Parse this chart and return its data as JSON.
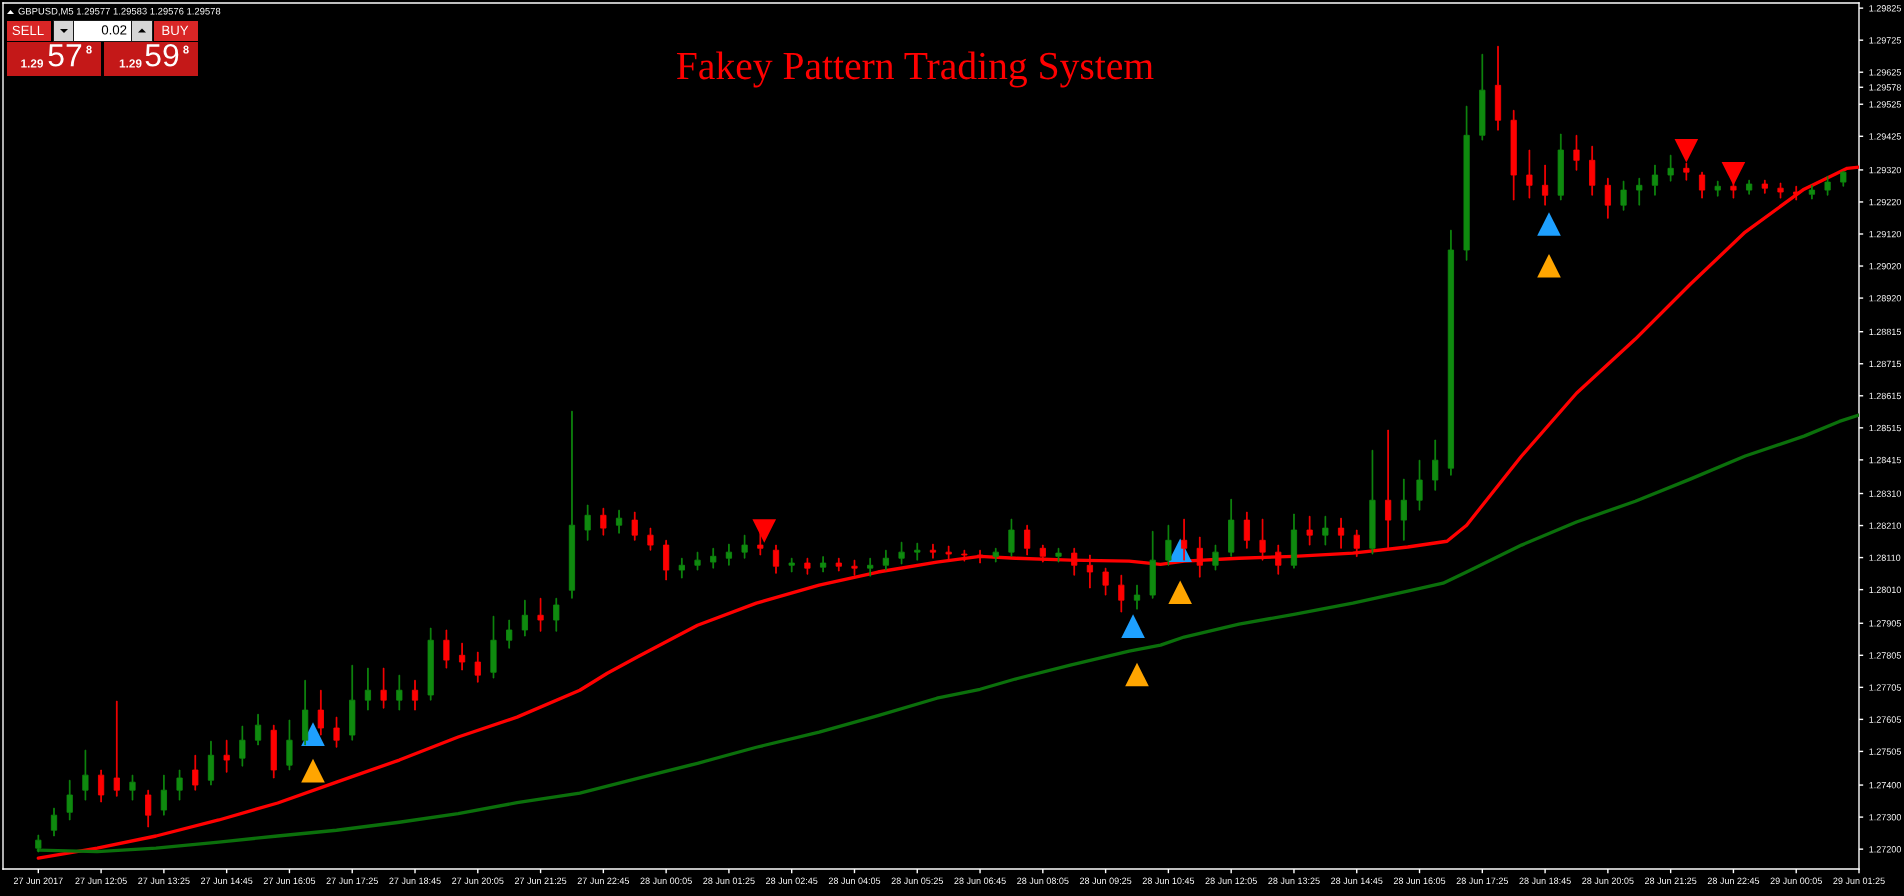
{
  "chart_data": {
    "type": "candlestick",
    "title": "Fakey Pattern Trading System",
    "x": [
      "2017-06-27T10:45",
      "2017-06-27T11:05",
      "2017-06-27T11:25",
      "2017-06-27T11:45",
      "2017-06-27T12:05",
      "2017-06-27T12:25",
      "2017-06-27T12:45",
      "2017-06-27T13:05",
      "2017-06-27T13:25",
      "2017-06-27T13:45",
      "2017-06-27T14:05",
      "2017-06-27T14:25",
      "2017-06-27T14:45",
      "2017-06-27T15:05",
      "2017-06-27T15:25",
      "2017-06-27T15:45",
      "2017-06-27T16:05",
      "2017-06-27T16:25",
      "2017-06-27T16:45",
      "2017-06-27T17:05",
      "2017-06-27T17:25",
      "2017-06-27T17:45",
      "2017-06-27T18:05",
      "2017-06-27T18:25",
      "2017-06-27T18:45",
      "2017-06-27T19:05",
      "2017-06-27T19:25",
      "2017-06-27T19:45",
      "2017-06-27T20:05",
      "2017-06-27T20:25",
      "2017-06-27T20:45",
      "2017-06-27T21:05",
      "2017-06-27T21:25",
      "2017-06-27T21:45",
      "2017-06-27T22:05",
      "2017-06-27T22:25",
      "2017-06-27T22:45",
      "2017-06-27T23:05",
      "2017-06-27T23:25",
      "2017-06-27T23:45",
      "2017-06-28T00:05",
      "2017-06-28T00:25",
      "2017-06-28T00:45",
      "2017-06-28T01:05",
      "2017-06-28T01:25",
      "2017-06-28T01:45",
      "2017-06-28T02:05",
      "2017-06-28T02:25",
      "2017-06-28T02:45",
      "2017-06-28T03:05",
      "2017-06-28T03:25",
      "2017-06-28T03:45",
      "2017-06-28T04:05",
      "2017-06-28T04:25",
      "2017-06-28T04:45",
      "2017-06-28T05:05",
      "2017-06-28T05:25",
      "2017-06-28T05:45",
      "2017-06-28T06:05",
      "2017-06-28T06:25",
      "2017-06-28T06:45",
      "2017-06-28T07:05",
      "2017-06-28T07:25",
      "2017-06-28T07:45",
      "2017-06-28T08:05",
      "2017-06-28T08:25",
      "2017-06-28T08:45",
      "2017-06-28T09:05",
      "2017-06-28T09:25",
      "2017-06-28T09:45",
      "2017-06-28T10:05",
      "2017-06-28T10:25",
      "2017-06-28T10:45",
      "2017-06-28T11:05",
      "2017-06-28T11:25",
      "2017-06-28T11:45",
      "2017-06-28T12:05",
      "2017-06-28T12:25",
      "2017-06-28T12:45",
      "2017-06-28T13:05",
      "2017-06-28T13:25",
      "2017-06-28T13:45",
      "2017-06-28T14:05",
      "2017-06-28T14:25",
      "2017-06-28T14:45",
      "2017-06-28T15:05",
      "2017-06-28T15:25",
      "2017-06-28T15:45",
      "2017-06-28T16:05",
      "2017-06-28T16:25",
      "2017-06-28T16:45",
      "2017-06-28T17:05",
      "2017-06-28T17:25",
      "2017-06-28T17:45",
      "2017-06-28T18:05",
      "2017-06-28T18:25",
      "2017-06-28T18:45",
      "2017-06-28T19:05",
      "2017-06-28T19:25",
      "2017-06-28T19:45",
      "2017-06-28T20:05",
      "2017-06-28T20:25",
      "2017-06-28T20:45",
      "2017-06-28T21:05",
      "2017-06-28T21:25",
      "2017-06-28T21:45",
      "2017-06-28T22:05",
      "2017-06-28T22:25",
      "2017-06-28T22:45",
      "2017-06-28T23:05",
      "2017-06-28T23:25",
      "2017-06-28T23:45",
      "2017-06-29T00:05",
      "2017-06-29T00:25",
      "2017-06-29T00:45",
      "2017-06-29T01:05"
    ],
    "ohlc": [
      [
        1.27203,
        1.27244,
        1.27191,
        1.27228
      ],
      [
        1.27259,
        1.27328,
        1.27241,
        1.27306
      ],
      [
        1.27315,
        1.27415,
        1.27291,
        1.27369
      ],
      [
        1.27384,
        1.27509,
        1.27353,
        1.27431
      ],
      [
        1.27431,
        1.27447,
        1.27347,
        1.27369
      ],
      [
        1.27422,
        1.27662,
        1.27365,
        1.27384
      ],
      [
        1.27384,
        1.27431,
        1.27353,
        1.27409
      ],
      [
        1.27369,
        1.27384,
        1.27269,
        1.27306
      ],
      [
        1.27322,
        1.27431,
        1.27306,
        1.27384
      ],
      [
        1.27384,
        1.27447,
        1.27353,
        1.27422
      ],
      [
        1.27447,
        1.27493,
        1.27384,
        1.274
      ],
      [
        1.27415,
        1.27537,
        1.274,
        1.27493
      ],
      [
        1.27493,
        1.2754,
        1.2744,
        1.27478
      ],
      [
        1.27484,
        1.27584,
        1.27459,
        1.2754
      ],
      [
        1.2754,
        1.27621,
        1.27525,
        1.27587
      ],
      [
        1.27571,
        1.27587,
        1.27422,
        1.27447
      ],
      [
        1.27462,
        1.27603,
        1.27447,
        1.2754
      ],
      [
        1.2754,
        1.27727,
        1.27525,
        1.27634
      ],
      [
        1.27634,
        1.27696,
        1.27556,
        1.27578
      ],
      [
        1.27578,
        1.27612,
        1.27518,
        1.2754
      ],
      [
        1.27556,
        1.27774,
        1.2754,
        1.27665
      ],
      [
        1.27665,
        1.27765,
        1.27634,
        1.27696
      ],
      [
        1.27696,
        1.27765,
        1.2764,
        1.27665
      ],
      [
        1.27665,
        1.27743,
        1.27634,
        1.27696
      ],
      [
        1.27696,
        1.27727,
        1.27634,
        1.27665
      ],
      [
        1.27681,
        1.2789,
        1.27665,
        1.27852
      ],
      [
        1.27852,
        1.27884,
        1.27765,
        1.2779
      ],
      [
        1.27805,
        1.27843,
        1.27759,
        1.27784
      ],
      [
        1.27784,
        1.27815,
        1.27721,
        1.27743
      ],
      [
        1.27752,
        1.27927,
        1.27734,
        1.27852
      ],
      [
        1.27852,
        1.27915,
        1.27827,
        1.27884
      ],
      [
        1.27884,
        1.27977,
        1.27865,
        1.2793
      ],
      [
        1.2793,
        1.27983,
        1.2788,
        1.27915
      ],
      [
        1.27915,
        1.27983,
        1.2788,
        1.27962
      ],
      [
        1.28008,
        1.28567,
        1.27983,
        1.28211
      ],
      [
        1.28196,
        1.28274,
        1.28164,
        1.28242
      ],
      [
        1.28242,
        1.28264,
        1.2818,
        1.28202
      ],
      [
        1.28211,
        1.28258,
        1.28186,
        1.28233
      ],
      [
        1.28227,
        1.28252,
        1.28164,
        1.2818
      ],
      [
        1.2818,
        1.28202,
        1.28133,
        1.28149
      ],
      [
        1.28149,
        1.28164,
        1.2804,
        1.28071
      ],
      [
        1.28071,
        1.28108,
        1.28046,
        1.28086
      ],
      [
        1.28086,
        1.28127,
        1.28071,
        1.28102
      ],
      [
        1.28096,
        1.28139,
        1.28077,
        1.28114
      ],
      [
        1.28108,
        1.28152,
        1.28086,
        1.28127
      ],
      [
        1.28127,
        1.2818,
        1.28108,
        1.28149
      ],
      [
        1.28149,
        1.28196,
        1.28118,
        1.28139
      ],
      [
        1.28133,
        1.28149,
        1.28061,
        1.28083
      ],
      [
        1.28086,
        1.28108,
        1.28065,
        1.28093
      ],
      [
        1.28093,
        1.28108,
        1.28058,
        1.28077
      ],
      [
        1.2808,
        1.28113,
        1.28065,
        1.28093
      ],
      [
        1.28093,
        1.28108,
        1.28068,
        1.28083
      ],
      [
        1.28083,
        1.28102,
        1.28055,
        1.28077
      ],
      [
        1.28077,
        1.28108,
        1.28052,
        1.28086
      ],
      [
        1.28086,
        1.28133,
        1.28071,
        1.28108
      ],
      [
        1.28108,
        1.28158,
        1.2809,
        1.28127
      ],
      [
        1.28127,
        1.28155,
        1.28102,
        1.28133
      ],
      [
        1.28133,
        1.28152,
        1.28108,
        1.28127
      ],
      [
        1.28127,
        1.28146,
        1.28102,
        1.28121
      ],
      [
        1.28121,
        1.28133,
        1.28099,
        1.28118
      ],
      [
        1.28118,
        1.28133,
        1.28093,
        1.28113
      ],
      [
        1.28113,
        1.28139,
        1.28096,
        1.28127
      ],
      [
        1.28127,
        1.2823,
        1.28114,
        1.28196
      ],
      [
        1.28196,
        1.28211,
        1.28118,
        1.28139
      ],
      [
        1.28139,
        1.28149,
        1.28096,
        1.28114
      ],
      [
        1.28114,
        1.28139,
        1.28096,
        1.28124
      ],
      [
        1.28124,
        1.28139,
        1.28055,
        1.28086
      ],
      [
        1.28086,
        1.28118,
        1.28015,
        1.28065
      ],
      [
        1.28065,
        1.28077,
        1.27993,
        1.28024
      ],
      [
        1.28024,
        1.28055,
        1.2794,
        1.27977
      ],
      [
        1.27977,
        1.28024,
        1.27949,
        1.27993
      ],
      [
        1.27993,
        1.28192,
        1.27983,
        1.28102
      ],
      [
        1.28102,
        1.28211,
        1.28086,
        1.28164
      ],
      [
        1.28164,
        1.2823,
        1.28102,
        1.28139
      ],
      [
        1.28139,
        1.28174,
        1.28049,
        1.28086
      ],
      [
        1.28086,
        1.28149,
        1.28071,
        1.28127
      ],
      [
        1.28127,
        1.28292,
        1.28114,
        1.28227
      ],
      [
        1.28227,
        1.28252,
        1.28139,
        1.28164
      ],
      [
        1.28164,
        1.2823,
        1.28102,
        1.28127
      ],
      [
        1.28127,
        1.28149,
        1.28058,
        1.28086
      ],
      [
        1.28086,
        1.28246,
        1.28077,
        1.28196
      ],
      [
        1.28196,
        1.28239,
        1.28149,
        1.2818
      ],
      [
        1.2818,
        1.28239,
        1.28149,
        1.28202
      ],
      [
        1.28202,
        1.28233,
        1.28139,
        1.2818
      ],
      [
        1.2818,
        1.28196,
        1.28113,
        1.28139
      ],
      [
        1.28139,
        1.28445,
        1.28121,
        1.28289
      ],
      [
        1.28289,
        1.28508,
        1.28139,
        1.28227
      ],
      [
        1.28227,
        1.28355,
        1.28164,
        1.28289
      ],
      [
        1.28289,
        1.28414,
        1.28258,
        1.28352
      ],
      [
        1.28352,
        1.28477,
        1.2832,
        1.28414
      ],
      [
        1.28389,
        1.29132,
        1.28367,
        1.2907
      ],
      [
        1.2907,
        1.29519,
        1.29038,
        1.29428
      ],
      [
        1.29428,
        1.29681,
        1.29413,
        1.29569
      ],
      [
        1.29584,
        1.29706,
        1.29444,
        1.29475
      ],
      [
        1.29475,
        1.29506,
        1.29226,
        1.29304
      ],
      [
        1.29304,
        1.29382,
        1.29232,
        1.29272
      ],
      [
        1.29272,
        1.29335,
        1.2921,
        1.29241
      ],
      [
        1.29241,
        1.29432,
        1.29226,
        1.29382
      ],
      [
        1.29382,
        1.29428,
        1.29319,
        1.2935
      ],
      [
        1.2935,
        1.29394,
        1.29241,
        1.29272
      ],
      [
        1.29272,
        1.29294,
        1.29169,
        1.2921
      ],
      [
        1.2921,
        1.29285,
        1.29194,
        1.29257
      ],
      [
        1.29257,
        1.29294,
        1.2921,
        1.29272
      ],
      [
        1.29272,
        1.29335,
        1.29241,
        1.29304
      ],
      [
        1.29304,
        1.29366,
        1.29285,
        1.29325
      ],
      [
        1.29325,
        1.29341,
        1.29288,
        1.29313
      ],
      [
        1.29304,
        1.29313,
        1.29232,
        1.29257
      ],
      [
        1.29257,
        1.29285,
        1.29238,
        1.29269
      ],
      [
        1.29269,
        1.29282,
        1.29232,
        1.29257
      ],
      [
        1.29257,
        1.29288,
        1.29244,
        1.29276
      ],
      [
        1.29276,
        1.29288,
        1.29247,
        1.29263
      ],
      [
        1.29263,
        1.29279,
        1.29232,
        1.29251
      ],
      [
        1.29251,
        1.29269,
        1.29226,
        1.29244
      ],
      [
        1.29244,
        1.29272,
        1.29229,
        1.29257
      ],
      [
        1.29257,
        1.293,
        1.29241,
        1.29282
      ],
      [
        1.29282,
        1.29316,
        1.29269,
        1.29313
      ]
    ],
    "colors": [
      "#0f8a0f",
      "#0f8a0f",
      "#0f8a0f",
      "#0f8a0f",
      "#ff0000",
      "#ff0000",
      "#0f8a0f",
      "#ff0000",
      "#0f8a0f",
      "#0f8a0f",
      "#ff0000",
      "#0f8a0f",
      "#ff0000",
      "#0f8a0f",
      "#0f8a0f",
      "#ff0000",
      "#0f8a0f",
      "#0f8a0f",
      "#ff0000",
      "#ff0000",
      "#0f8a0f",
      "#0f8a0f",
      "#ff0000",
      "#0f8a0f",
      "#ff0000",
      "#0f8a0f",
      "#ff0000",
      "#ff0000",
      "#ff0000",
      "#0f8a0f",
      "#0f8a0f",
      "#0f8a0f",
      "#ff0000",
      "#0f8a0f",
      "#0f8a0f",
      "#0f8a0f",
      "#ff0000",
      "#0f8a0f",
      "#ff0000",
      "#ff0000",
      "#ff0000",
      "#0f8a0f",
      "#0f8a0f",
      "#0f8a0f",
      "#0f8a0f",
      "#0f8a0f",
      "#ff0000",
      "#ff0000",
      "#0f8a0f",
      "#ff0000",
      "#0f8a0f",
      "#ff0000",
      "#ff0000",
      "#0f8a0f",
      "#0f8a0f",
      "#0f8a0f",
      "#0f8a0f",
      "#ff0000",
      "#ff0000",
      "#ff0000",
      "#ff0000",
      "#0f8a0f",
      "#0f8a0f",
      "#ff0000",
      "#ff0000",
      "#0f8a0f",
      "#ff0000",
      "#ff0000",
      "#ff0000",
      "#ff0000",
      "#0f8a0f",
      "#0f8a0f",
      "#0f8a0f",
      "#ff0000",
      "#ff0000",
      "#0f8a0f",
      "#0f8a0f",
      "#ff0000",
      "#ff0000",
      "#ff0000",
      "#0f8a0f",
      "#ff0000",
      "#0f8a0f",
      "#ff0000",
      "#ff0000",
      "#0f8a0f",
      "#ff0000",
      "#0f8a0f",
      "#0f8a0f",
      "#0f8a0f",
      "#0f8a0f",
      "#0f8a0f",
      "#0f8a0f",
      "#ff0000",
      "#ff0000",
      "#ff0000",
      "#ff0000",
      "#0f8a0f",
      "#ff0000",
      "#ff0000",
      "#ff0000",
      "#0f8a0f",
      "#0f8a0f",
      "#0f8a0f",
      "#0f8a0f",
      "#ff0000",
      "#ff0000",
      "#0f8a0f",
      "#ff0000",
      "#0f8a0f",
      "#ff0000",
      "#ff0000",
      "#ff0000",
      "#0f8a0f",
      "#0f8a0f",
      "#0f8a0f"
    ],
    "series": [
      {
        "type": "line",
        "color": "#ff0000",
        "x": [
          "2017-06-27T10:45",
          "2017-06-27T12:00",
          "2017-06-27T13:15",
          "2017-06-27T14:35",
          "2017-06-27T15:50",
          "2017-06-27T17:05",
          "2017-06-27T18:25",
          "2017-06-27T19:40",
          "2017-06-27T20:55",
          "2017-06-27T22:15",
          "2017-06-27T22:50",
          "2017-06-27T23:30",
          "2017-06-28T00:45",
          "2017-06-28T02:00",
          "2017-06-28T03:20",
          "2017-06-28T04:35",
          "2017-06-28T05:50",
          "2017-06-28T06:45",
          "2017-06-28T07:30",
          "2017-06-28T08:40",
          "2017-06-28T09:55",
          "2017-06-28T10:35",
          "2017-06-28T11:05",
          "2017-06-28T12:15",
          "2017-06-28T13:25",
          "2017-06-28T14:40",
          "2017-06-28T15:50",
          "2017-06-28T16:40",
          "2017-06-28T17:05",
          "2017-06-28T18:15",
          "2017-06-28T19:25",
          "2017-06-28T20:40",
          "2017-06-28T21:50",
          "2017-06-28T23:00",
          "2017-06-29T00:15",
          "2017-06-29T00:55",
          "2017-06-29T01:10",
          "2017-06-29T01:25"
        ],
        "values": [
          1.27172,
          1.27203,
          1.27241,
          1.27291,
          1.27344,
          1.27409,
          1.27478,
          1.2755,
          1.27612,
          1.27696,
          1.27749,
          1.27802,
          1.27899,
          1.27968,
          1.28024,
          1.28065,
          1.28096,
          1.28114,
          1.28108,
          1.28102,
          1.28099,
          1.28089,
          1.28099,
          1.28108,
          1.28114,
          1.28124,
          1.28143,
          1.28161,
          1.28211,
          1.28427,
          1.28623,
          1.28792,
          1.28963,
          1.29126,
          1.2926,
          1.29307,
          1.29325,
          1.29329
        ]
      },
      {
        "type": "line",
        "color": "#0b700b",
        "x": [
          "2017-06-27T10:45",
          "2017-06-27T12:00",
          "2017-06-27T13:15",
          "2017-06-27T14:35",
          "2017-06-27T15:50",
          "2017-06-27T17:05",
          "2017-06-27T18:25",
          "2017-06-27T19:40",
          "2017-06-27T20:55",
          "2017-06-27T22:15",
          "2017-06-27T23:30",
          "2017-06-28T00:45",
          "2017-06-28T02:00",
          "2017-06-28T03:20",
          "2017-06-28T04:35",
          "2017-06-28T05:50",
          "2017-06-28T06:45",
          "2017-06-28T07:30",
          "2017-06-28T08:40",
          "2017-06-28T09:55",
          "2017-06-28T10:35",
          "2017-06-28T11:05",
          "2017-06-28T12:15",
          "2017-06-28T13:25",
          "2017-06-28T14:40",
          "2017-06-28T15:50",
          "2017-06-28T16:35",
          "2017-06-28T17:05",
          "2017-06-28T18:15",
          "2017-06-28T19:25",
          "2017-06-28T20:40",
          "2017-06-28T21:50",
          "2017-06-28T23:00",
          "2017-06-29T00:15",
          "2017-06-29T01:00",
          "2017-06-29T01:25"
        ],
        "values": [
          1.27197,
          1.27192,
          1.27203,
          1.27222,
          1.27241,
          1.27259,
          1.27284,
          1.27311,
          1.27345,
          1.27375,
          1.27422,
          1.27468,
          1.27518,
          1.27565,
          1.27617,
          1.27671,
          1.27699,
          1.27731,
          1.27774,
          1.27818,
          1.27837,
          1.27862,
          1.27902,
          1.27933,
          1.27968,
          1.28005,
          1.2803,
          1.28065,
          1.28149,
          1.28221,
          1.28286,
          1.28355,
          1.28427,
          1.28489,
          1.28535,
          1.28555
        ]
      },
      {
        "type": "scatter",
        "color": "#1ea0ff",
        "marker": "triangle",
        "x": [
          "2017-06-27T16:35",
          "2017-06-28T10:00",
          "2017-06-28T11:00",
          "2017-06-28T18:50"
        ],
        "values": [
          1.27559,
          1.27896,
          1.28133,
          1.29151
        ]
      },
      {
        "type": "scatter",
        "color": "#ffa500",
        "marker": "triangle",
        "x": [
          "2017-06-27T16:35",
          "2017-06-28T10:05",
          "2017-06-28T11:00",
          "2017-06-28T18:50"
        ],
        "values": [
          1.27445,
          1.27745,
          1.28002,
          1.29021
        ]
      },
      {
        "type": "scatter",
        "color": "#ff0000",
        "x": [
          "2017-06-28T02:10",
          "2017-06-28T21:45",
          "2017-06-28T22:45"
        ],
        "values": [
          1.28193,
          1.2938,
          1.29308
        ]
      }
    ],
    "xlim": [
      "2017-06-27T10:00",
      "2017-06-29T01:25"
    ],
    "xticks": [
      {
        "value": "2017-06-27T10:45",
        "label": "27 Jun 2017"
      },
      {
        "value": "2017-06-27T12:05",
        "label": "27 Jun 12:05"
      },
      {
        "value": "2017-06-27T13:25",
        "label": "27 Jun 13:25"
      },
      {
        "value": "2017-06-27T14:45",
        "label": "27 Jun 14:45"
      },
      {
        "value": "2017-06-27T16:05",
        "label": "27 Jun 16:05"
      },
      {
        "value": "2017-06-27T17:25",
        "label": "27 Jun 17:25"
      },
      {
        "value": "2017-06-27T18:45",
        "label": "27 Jun 18:45"
      },
      {
        "value": "2017-06-27T20:05",
        "label": "27 Jun 20:05"
      },
      {
        "value": "2017-06-27T21:25",
        "label": "27 Jun 21:25"
      },
      {
        "value": "2017-06-27T22:45",
        "label": "27 Jun 22:45"
      },
      {
        "value": "2017-06-28T00:05",
        "label": "28 Jun 00:05"
      },
      {
        "value": "2017-06-28T01:25",
        "label": "28 Jun 01:25"
      },
      {
        "value": "2017-06-28T02:45",
        "label": "28 Jun 02:45"
      },
      {
        "value": "2017-06-28T04:05",
        "label": "28 Jun 04:05"
      },
      {
        "value": "2017-06-28T05:25",
        "label": "28 Jun 05:25"
      },
      {
        "value": "2017-06-28T06:45",
        "label": "28 Jun 06:45"
      },
      {
        "value": "2017-06-28T08:05",
        "label": "28 Jun 08:05"
      },
      {
        "value": "2017-06-28T09:25",
        "label": "28 Jun 09:25"
      },
      {
        "value": "2017-06-28T10:45",
        "label": "28 Jun 10:45"
      },
      {
        "value": "2017-06-28T12:05",
        "label": "28 Jun 12:05"
      },
      {
        "value": "2017-06-28T13:25",
        "label": "28 Jun 13:25"
      },
      {
        "value": "2017-06-28T14:45",
        "label": "28 Jun 14:45"
      },
      {
        "value": "2017-06-28T16:05",
        "label": "28 Jun 16:05"
      },
      {
        "value": "2017-06-28T17:25",
        "label": "28 Jun 17:25"
      },
      {
        "value": "2017-06-28T18:45",
        "label": "28 Jun 18:45"
      },
      {
        "value": "2017-06-28T20:05",
        "label": "28 Jun 20:05"
      },
      {
        "value": "2017-06-28T21:25",
        "label": "28 Jun 21:25"
      },
      {
        "value": "2017-06-28T22:45",
        "label": "28 Jun 22:45"
      },
      {
        "value": "2017-06-29T00:05",
        "label": "29 Jun 00:05"
      },
      {
        "value": "2017-06-29T01:25",
        "label": "29 Jun 01:25"
      }
    ],
    "ylim": [
      1.27138,
      1.29841
    ],
    "yticks": [
      {
        "value": 1.272,
        "label": "1.27200"
      },
      {
        "value": 1.273,
        "label": "1.27300"
      },
      {
        "value": 1.274,
        "label": "1.27400"
      },
      {
        "value": 1.27505,
        "label": "1.27505"
      },
      {
        "value": 1.27605,
        "label": "1.27605"
      },
      {
        "value": 1.27705,
        "label": "1.27705"
      },
      {
        "value": 1.27805,
        "label": "1.27805"
      },
      {
        "value": 1.27905,
        "label": "1.27905"
      },
      {
        "value": 1.2801,
        "label": "1.28010"
      },
      {
        "value": 1.2811,
        "label": "1.28110"
      },
      {
        "value": 1.2821,
        "label": "1.28210"
      },
      {
        "value": 1.2831,
        "label": "1.28310"
      },
      {
        "value": 1.28415,
        "label": "1.28415"
      },
      {
        "value": 1.28515,
        "label": "1.28515"
      },
      {
        "value": 1.28615,
        "label": "1.28615"
      },
      {
        "value": 1.28715,
        "label": "1.28715"
      },
      {
        "value": 1.28815,
        "label": "1.28815"
      },
      {
        "value": 1.2892,
        "label": "1.28920"
      },
      {
        "value": 1.2902,
        "label": "1.29020"
      },
      {
        "value": 1.2912,
        "label": "1.29120"
      },
      {
        "value": 1.2922,
        "label": "1.29220"
      },
      {
        "value": 1.2932,
        "label": "1.29320"
      },
      {
        "value": 1.29425,
        "label": "1.29425"
      },
      {
        "value": 1.29525,
        "label": "1.29525"
      },
      {
        "value": 1.29578,
        "label": "1.29578"
      },
      {
        "value": 1.29625,
        "label": "1.29625"
      },
      {
        "value": 1.29725,
        "label": "1.29725"
      },
      {
        "value": 1.29825,
        "label": "1.29825"
      }
    ],
    "annotations": [
      "GBPUSD,M5 1.29577 1.29583 1.29576 1.29578",
      "SELL",
      "0.02",
      "BUY",
      "1.29",
      "57",
      "8",
      "1.29",
      "59",
      "8"
    ]
  }
}
